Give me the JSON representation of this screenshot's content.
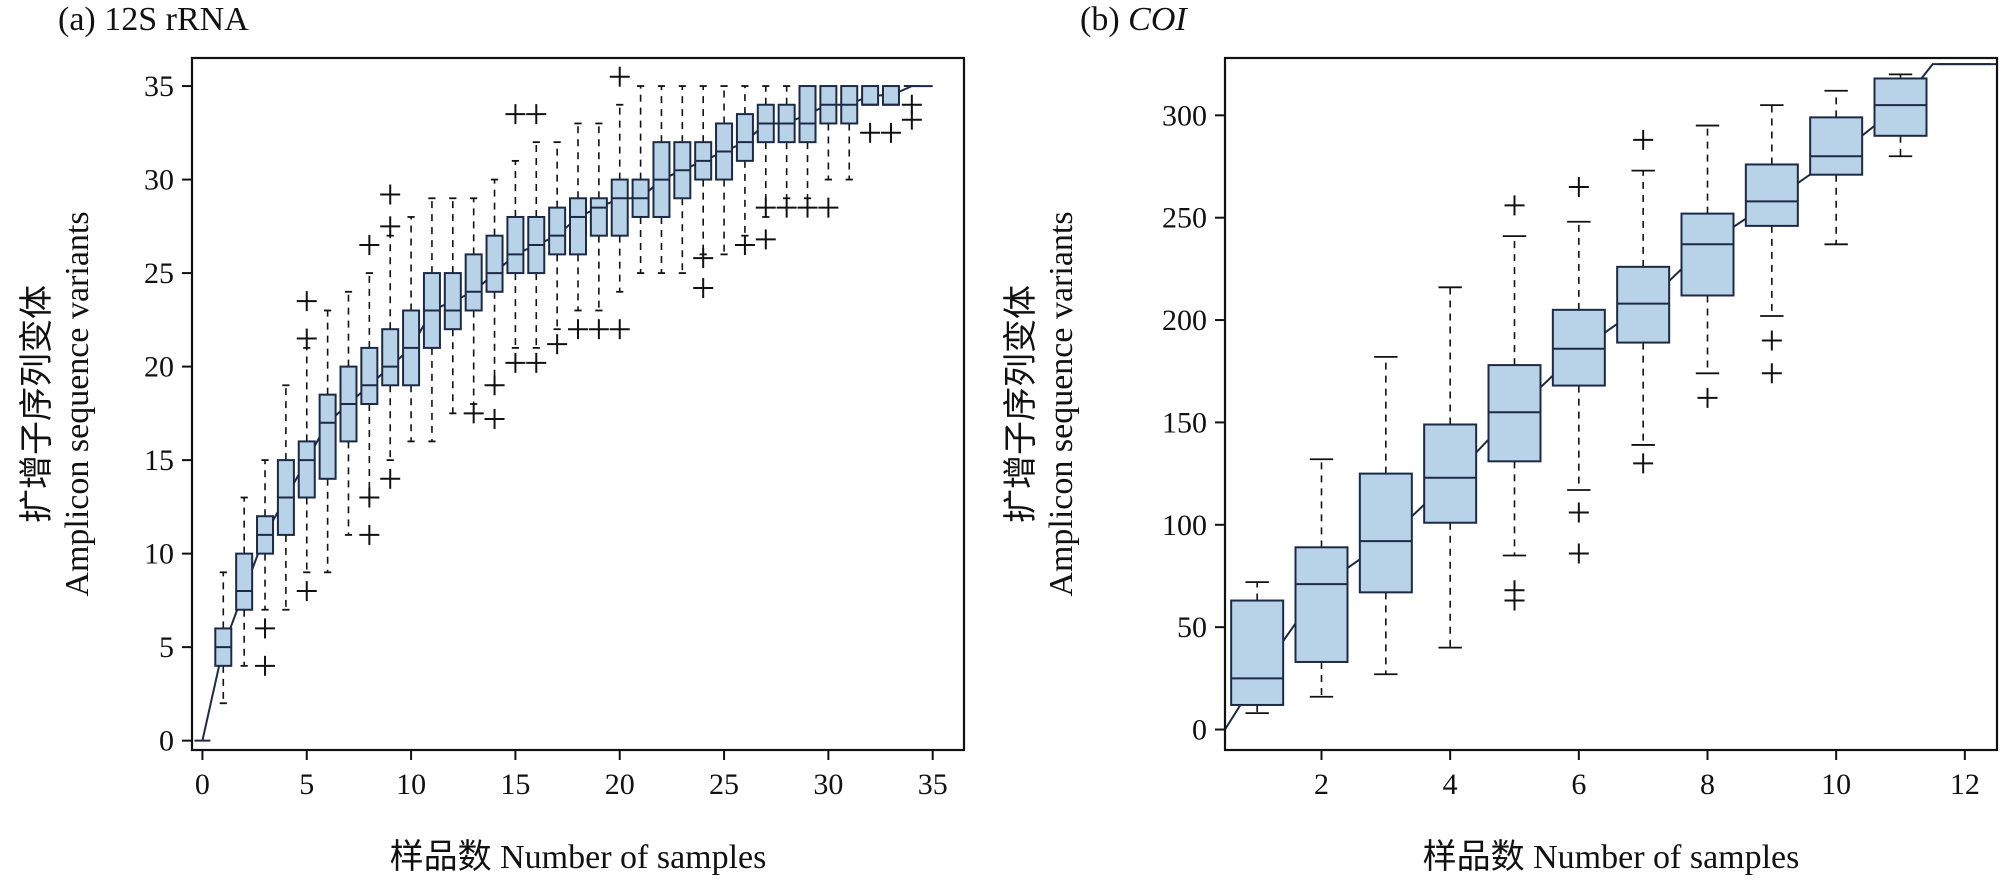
{
  "chart_data": [
    {
      "type": "box",
      "title": "(a) 12S rRNA",
      "xlabel": "样品数 Number of samples",
      "ylabel_cn": "扩增子序列变体",
      "ylabel_en": "Amplicon sequence variants",
      "xlim": [
        -0.5,
        36.5
      ],
      "ylim": [
        -0.5,
        36.5
      ],
      "xticks": [
        0,
        5,
        10,
        15,
        20,
        25,
        30,
        35
      ],
      "yticks": [
        0,
        5,
        10,
        15,
        20,
        25,
        30,
        35
      ],
      "trend": [
        [
          0,
          0
        ],
        [
          1,
          5
        ],
        [
          2,
          8
        ],
        [
          3,
          11
        ],
        [
          4,
          13
        ],
        [
          5,
          15
        ],
        [
          6,
          17
        ],
        [
          7,
          18
        ],
        [
          8,
          19
        ],
        [
          9,
          20
        ],
        [
          10,
          21
        ],
        [
          11,
          23
        ],
        [
          12,
          23.5
        ],
        [
          13,
          24
        ],
        [
          14,
          25
        ],
        [
          15,
          26
        ],
        [
          16,
          26.5
        ],
        [
          17,
          27
        ],
        [
          18,
          28
        ],
        [
          19,
          28.5
        ],
        [
          20,
          29
        ],
        [
          21,
          29
        ],
        [
          22,
          30
        ],
        [
          23,
          30.5
        ],
        [
          24,
          31
        ],
        [
          25,
          31.5
        ],
        [
          26,
          32
        ],
        [
          27,
          33
        ],
        [
          28,
          33
        ],
        [
          29,
          33.5
        ],
        [
          30,
          34
        ],
        [
          31,
          34
        ],
        [
          32,
          34.5
        ],
        [
          33,
          34.5
        ],
        [
          34,
          35
        ],
        [
          35,
          35
        ]
      ],
      "boxes": [
        {
          "x": 0,
          "q1": 0,
          "med": 0,
          "q3": 0,
          "lo": 0,
          "hi": 0,
          "out": []
        },
        {
          "x": 1,
          "q1": 4,
          "med": 5,
          "q3": 6,
          "lo": 2,
          "hi": 9,
          "out": []
        },
        {
          "x": 2,
          "q1": 7,
          "med": 8,
          "q3": 10,
          "lo": 4,
          "hi": 13,
          "out": []
        },
        {
          "x": 3,
          "q1": 10,
          "med": 11,
          "q3": 12,
          "lo": 7,
          "hi": 15,
          "out": [
            6,
            4
          ]
        },
        {
          "x": 4,
          "q1": 11,
          "med": 13,
          "q3": 15,
          "lo": 7,
          "hi": 19,
          "out": []
        },
        {
          "x": 5,
          "q1": 13,
          "med": 15,
          "q3": 16,
          "lo": 9,
          "hi": 21,
          "out": [
            23.5,
            21.5,
            8
          ]
        },
        {
          "x": 6,
          "q1": 14,
          "med": 17,
          "q3": 18.5,
          "lo": 9,
          "hi": 23,
          "out": []
        },
        {
          "x": 7,
          "q1": 16,
          "med": 18,
          "q3": 20,
          "lo": 11,
          "hi": 24,
          "out": []
        },
        {
          "x": 8,
          "q1": 18,
          "med": 19,
          "q3": 21,
          "lo": 13,
          "hi": 25,
          "out": [
            26.5,
            13,
            11
          ]
        },
        {
          "x": 9,
          "q1": 19,
          "med": 20,
          "q3": 22,
          "lo": 15,
          "hi": 27,
          "out": [
            29.2,
            27.5,
            14
          ]
        },
        {
          "x": 10,
          "q1": 19,
          "med": 21,
          "q3": 23,
          "lo": 16,
          "hi": 28,
          "out": []
        },
        {
          "x": 11,
          "q1": 21,
          "med": 23,
          "q3": 25,
          "lo": 16,
          "hi": 29,
          "out": []
        },
        {
          "x": 12,
          "q1": 22,
          "med": 23,
          "q3": 25,
          "lo": 17.5,
          "hi": 29,
          "out": []
        },
        {
          "x": 13,
          "q1": 23,
          "med": 24,
          "q3": 26,
          "lo": 18,
          "hi": 29,
          "out": [
            17.5
          ]
        },
        {
          "x": 14,
          "q1": 24,
          "med": 25,
          "q3": 27,
          "lo": 19,
          "hi": 30,
          "out": [
            19,
            17.2
          ]
        },
        {
          "x": 15,
          "q1": 25,
          "med": 26,
          "q3": 28,
          "lo": 21,
          "hi": 31,
          "out": [
            33.5,
            20.2
          ]
        },
        {
          "x": 16,
          "q1": 25,
          "med": 26.5,
          "q3": 28,
          "lo": 21,
          "hi": 32,
          "out": [
            33.5,
            20.2
          ]
        },
        {
          "x": 17,
          "q1": 26,
          "med": 27,
          "q3": 28.5,
          "lo": 22,
          "hi": 32,
          "out": [
            21.2
          ]
        },
        {
          "x": 18,
          "q1": 26,
          "med": 28,
          "q3": 29,
          "lo": 23,
          "hi": 33,
          "out": [
            22
          ]
        },
        {
          "x": 19,
          "q1": 27,
          "med": 28.5,
          "q3": 29,
          "lo": 23,
          "hi": 33,
          "out": [
            22
          ]
        },
        {
          "x": 20,
          "q1": 27,
          "med": 29,
          "q3": 30,
          "lo": 24,
          "hi": 34,
          "out": [
            35.5,
            22
          ]
        },
        {
          "x": 21,
          "q1": 28,
          "med": 29,
          "q3": 30,
          "lo": 25,
          "hi": 35,
          "out": []
        },
        {
          "x": 22,
          "q1": 28,
          "med": 30,
          "q3": 32,
          "lo": 25,
          "hi": 35,
          "out": []
        },
        {
          "x": 23,
          "q1": 29,
          "med": 30.5,
          "q3": 32,
          "lo": 25,
          "hi": 35,
          "out": []
        },
        {
          "x": 24,
          "q1": 30,
          "med": 31,
          "q3": 32,
          "lo": 26,
          "hi": 35,
          "out": [
            25.8,
            24.2
          ]
        },
        {
          "x": 25,
          "q1": 30,
          "med": 31.5,
          "q3": 33,
          "lo": 26,
          "hi": 35,
          "out": []
        },
        {
          "x": 26,
          "q1": 31,
          "med": 32,
          "q3": 33.5,
          "lo": 27,
          "hi": 35,
          "out": [
            26.5
          ]
        },
        {
          "x": 27,
          "q1": 32,
          "med": 33,
          "q3": 34,
          "lo": 28,
          "hi": 35,
          "out": [
            28.5,
            26.8
          ]
        },
        {
          "x": 28,
          "q1": 32,
          "med": 33,
          "q3": 34,
          "lo": 29,
          "hi": 35,
          "out": [
            28.5
          ]
        },
        {
          "x": 29,
          "q1": 32,
          "med": 33,
          "q3": 35,
          "lo": 29,
          "hi": 35,
          "out": [
            28.5
          ]
        },
        {
          "x": 30,
          "q1": 33,
          "med": 34,
          "q3": 35,
          "lo": 30,
          "hi": 35,
          "out": [
            28.5
          ]
        },
        {
          "x": 31,
          "q1": 33,
          "med": 34,
          "q3": 35,
          "lo": 30,
          "hi": 35,
          "out": []
        },
        {
          "x": 32,
          "q1": 34,
          "med": 34,
          "q3": 35,
          "lo": 34,
          "hi": 35,
          "out": [
            32.5
          ]
        },
        {
          "x": 33,
          "q1": 34,
          "med": 34,
          "q3": 35,
          "lo": 34,
          "hi": 35,
          "out": [
            32.5
          ]
        },
        {
          "x": 34,
          "q1": 35,
          "med": 35,
          "q3": 35,
          "lo": 35,
          "hi": 35,
          "out": [
            34,
            33.2
          ]
        }
      ]
    },
    {
      "type": "box",
      "title_prefix": "(b) ",
      "title_italic": "COI",
      "xlabel": "样品数 Number of samples",
      "ylabel_cn": "扩增子序列变体",
      "ylabel_en": "Amplicon sequence variants",
      "xlim": [
        0.5,
        12.5
      ],
      "ylim": [
        -10,
        328
      ],
      "xticks": [
        2,
        4,
        6,
        8,
        10,
        12
      ],
      "yticks": [
        0,
        50,
        100,
        150,
        200,
        250,
        300
      ],
      "trend": [
        [
          0.5,
          0
        ],
        [
          1,
          25
        ],
        [
          2,
          70
        ],
        [
          3,
          92
        ],
        [
          4,
          122
        ],
        [
          5,
          155
        ],
        [
          6,
          185
        ],
        [
          7,
          207
        ],
        [
          8,
          237
        ],
        [
          9,
          258
        ],
        [
          10,
          280
        ],
        [
          11,
          305
        ],
        [
          11.5,
          325
        ],
        [
          12.5,
          325
        ]
      ],
      "boxes": [
        {
          "x": 1,
          "q1": 12,
          "med": 25,
          "q3": 63,
          "lo": 8,
          "hi": 72,
          "out": []
        },
        {
          "x": 2,
          "q1": 33,
          "med": 71,
          "q3": 89,
          "lo": 16,
          "hi": 132,
          "out": []
        },
        {
          "x": 3,
          "q1": 67,
          "med": 92,
          "q3": 125,
          "lo": 27,
          "hi": 182,
          "out": []
        },
        {
          "x": 4,
          "q1": 101,
          "med": 123,
          "q3": 149,
          "lo": 40,
          "hi": 216,
          "out": []
        },
        {
          "x": 5,
          "q1": 131,
          "med": 155,
          "q3": 178,
          "lo": 85,
          "hi": 241,
          "out": [
            256,
            68,
            63
          ]
        },
        {
          "x": 6,
          "q1": 168,
          "med": 186,
          "q3": 205,
          "lo": 117,
          "hi": 248,
          "out": [
            265,
            106,
            86
          ]
        },
        {
          "x": 7,
          "q1": 189,
          "med": 208,
          "q3": 226,
          "lo": 139,
          "hi": 273,
          "out": [
            288,
            130
          ]
        },
        {
          "x": 8,
          "q1": 212,
          "med": 237,
          "q3": 252,
          "lo": 174,
          "hi": 295,
          "out": [
            162
          ]
        },
        {
          "x": 9,
          "q1": 246,
          "med": 258,
          "q3": 276,
          "lo": 202,
          "hi": 305,
          "out": [
            190,
            174
          ]
        },
        {
          "x": 10,
          "q1": 271,
          "med": 280,
          "q3": 299,
          "lo": 237,
          "hi": 312,
          "out": []
        },
        {
          "x": 11,
          "q1": 290,
          "med": 305,
          "q3": 318,
          "lo": 280,
          "hi": 320,
          "out": []
        },
        {
          "x": 12,
          "q1": 325,
          "med": 325,
          "q3": 325,
          "lo": 325,
          "hi": 325,
          "out": []
        }
      ]
    }
  ]
}
